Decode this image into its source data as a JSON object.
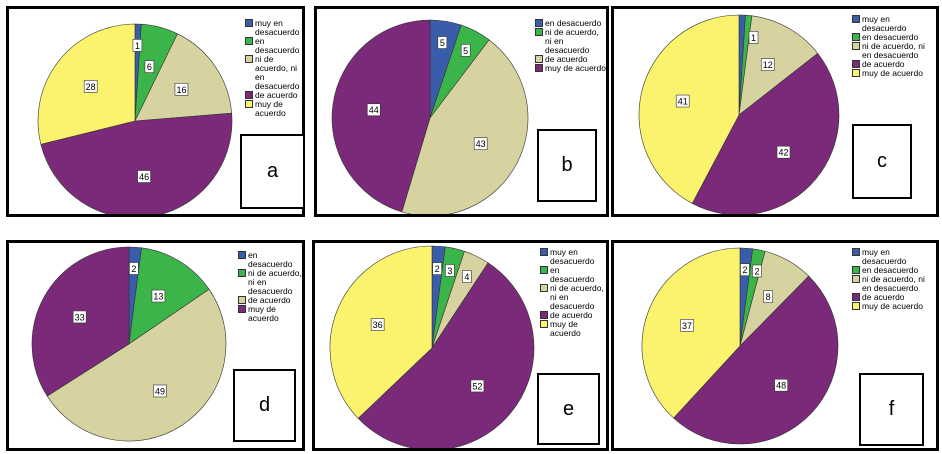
{
  "chart_data": [
    {
      "type": "pie",
      "panel_label": "a",
      "categories": [
        "muy en desacuerdo",
        "en desacuerdo",
        "ni de acuerdo, ni en desacuerdo",
        "de acuerdo",
        "muy de acuerdo"
      ],
      "values": [
        1,
        6,
        16,
        46,
        28
      ],
      "colors": [
        "#3a5dab",
        "#3bb54a",
        "#d6d3a0",
        "#7a2a78",
        "#fbf36e"
      ]
    },
    {
      "type": "pie",
      "panel_label": "b",
      "categories": [
        "en desacuerdo",
        "ni de acuerdo, ni en desacuerdo",
        "de acuerdo",
        "muy de acuerdo"
      ],
      "values": [
        5,
        5,
        43,
        44
      ],
      "colors": [
        "#3a5dab",
        "#3bb54a",
        "#d6d3a0",
        "#7a2a78"
      ]
    },
    {
      "type": "pie",
      "panel_label": "c",
      "categories": [
        "muy en desacuerdo",
        "en desacuerdo",
        "ni de acuerdo, ni en desacuerdo",
        "de acuerdo",
        "muy de acuerdo"
      ],
      "values": [
        1,
        1,
        12,
        42,
        41
      ],
      "value_labels": [
        "",
        "1",
        "12",
        "42",
        "41"
      ],
      "colors": [
        "#3a5dab",
        "#3bb54a",
        "#d6d3a0",
        "#7a2a78",
        "#fbf36e"
      ]
    },
    {
      "type": "pie",
      "panel_label": "d",
      "categories": [
        "en desacuerdo",
        "ni de acuerdo, ni en desacuerdo",
        "de acuerdo",
        "muy de acuerdo"
      ],
      "values": [
        2,
        13,
        49,
        33
      ],
      "colors": [
        "#3a5dab",
        "#3bb54a",
        "#d6d3a0",
        "#7a2a78"
      ]
    },
    {
      "type": "pie",
      "panel_label": "e",
      "categories": [
        "muy en desacuerdo",
        "en desacuerdo",
        "ni de acuerdo, ni en desacuerdo",
        "de acuerdo",
        "muy de acuerdo"
      ],
      "values": [
        2,
        3,
        4,
        52,
        36
      ],
      "colors": [
        "#3a5dab",
        "#3bb54a",
        "#d6d3a0",
        "#7a2a78",
        "#fbf36e"
      ]
    },
    {
      "type": "pie",
      "panel_label": "f",
      "categories": [
        "muy en desacuerdo",
        "en desacuerdo",
        "ni de acuerdo, ni en desacuerdo",
        "de acuerdo",
        "muy de acuerdo"
      ],
      "values": [
        2,
        2,
        8,
        48,
        37
      ],
      "colors": [
        "#3a5dab",
        "#3bb54a",
        "#d6d3a0",
        "#7a2a78",
        "#fbf36e"
      ]
    }
  ]
}
